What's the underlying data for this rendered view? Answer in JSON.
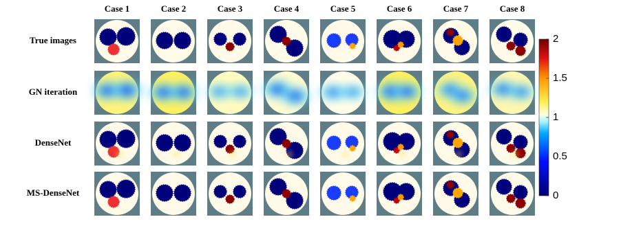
{
  "columns": [
    "Case 1",
    "Case 2",
    "Case 3",
    "Case 4",
    "Case 5",
    "Case 6",
    "Case 7",
    "Case 8"
  ],
  "rows": [
    "True images",
    "GN iteration",
    "DenseNet",
    "MS-DenseNet"
  ],
  "colorbar": {
    "lim": [
      0,
      2
    ],
    "ticks": [
      0,
      0.5,
      1,
      1.5,
      2
    ]
  }
}
